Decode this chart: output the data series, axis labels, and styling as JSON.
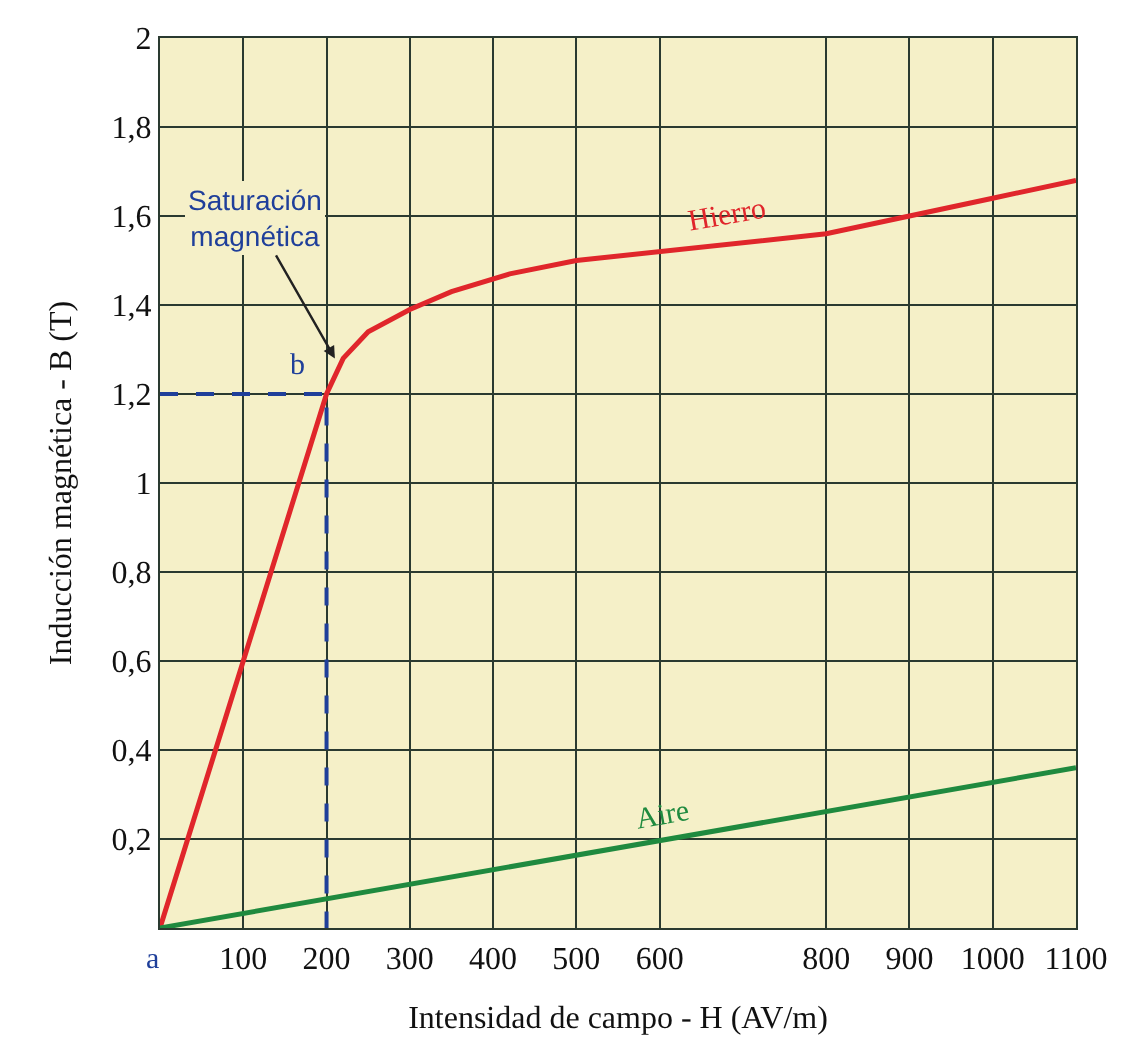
{
  "chart_data": {
    "type": "line",
    "xlabel": "Intensidad de campo - H (AV/m)",
    "ylabel": "Inducción magnética - B (T)",
    "series": [
      {
        "name": "Hierro",
        "color": "#e0262b",
        "x": [
          0,
          200,
          220,
          250,
          300,
          350,
          420,
          500,
          800,
          1000,
          1100
        ],
        "values": [
          0,
          1.2,
          1.28,
          1.34,
          1.39,
          1.43,
          1.47,
          1.5,
          1.56,
          1.64,
          1.68
        ]
      },
      {
        "name": "Aire",
        "color": "#1f8a3f",
        "x": [
          0,
          1100
        ],
        "values": [
          0,
          0.36
        ]
      },
      {
        "color": "#1f3f9a",
        "line_style": "dashed",
        "x": [
          0,
          200,
          200
        ],
        "values": [
          1.2,
          1.2,
          0
        ]
      }
    ],
    "xlim": [
      0,
      1100
    ],
    "xticks": [
      100,
      200,
      300,
      400,
      500,
      600,
      800,
      900,
      1000,
      1100
    ],
    "ylim": [
      0,
      2
    ],
    "yticks": [
      {
        "value": 0.2,
        "label": "0,2"
      },
      {
        "value": 0.4,
        "label": "0,4"
      },
      {
        "value": 0.6,
        "label": "0,6"
      },
      {
        "value": 0.8,
        "label": "0,8"
      },
      1,
      {
        "value": 1.2,
        "label": "1,2"
      },
      {
        "value": 1.4,
        "label": "1,4"
      },
      {
        "value": 1.6,
        "label": "1,6"
      },
      {
        "value": 1.8,
        "label": "1,8"
      },
      2
    ],
    "grid": true,
    "line_style": "solid",
    "annotations": [
      {
        "text": "Saturación magnética",
        "x": 210,
        "y": 1.28
      },
      {
        "text": "b",
        "x": 200,
        "y": 1.2
      },
      {
        "text": "a",
        "x": 0,
        "y": 0
      }
    ]
  }
}
